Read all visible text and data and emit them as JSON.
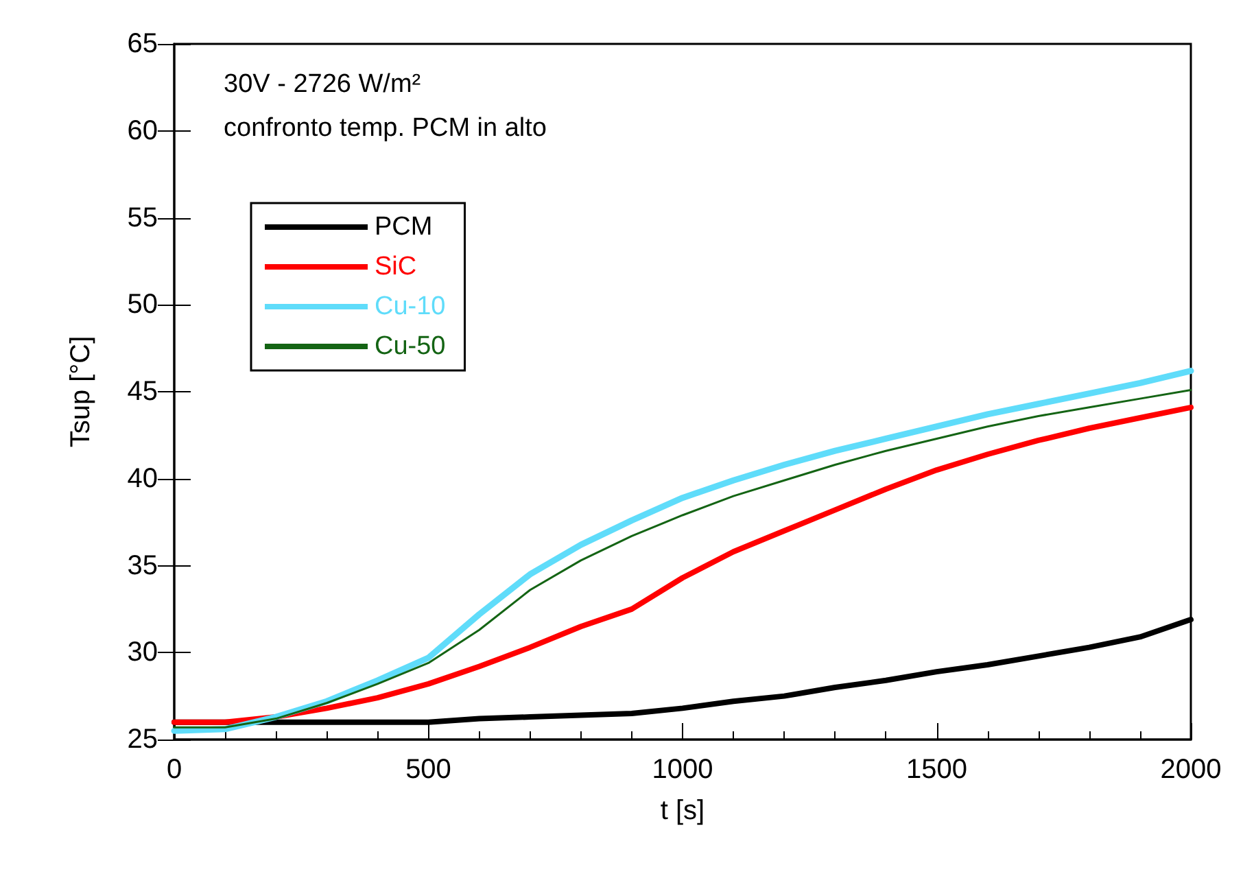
{
  "chart_data": {
    "type": "line",
    "xlabel": "t [s]",
    "ylabel": "Tsup [°C]",
    "annotations": [
      "30V - 2726 W/m²",
      "confronto temp. PCM in alto"
    ],
    "x": [
      0,
      100,
      200,
      300,
      400,
      500,
      600,
      700,
      800,
      900,
      1000,
      1100,
      1200,
      1300,
      1400,
      1500,
      1600,
      1700,
      1800,
      1900,
      2000
    ],
    "series": [
      {
        "name": "PCM",
        "color": "#000000",
        "values": [
          26,
          26,
          26,
          26,
          26,
          26,
          26.2,
          26.3,
          26.4,
          26.5,
          26.8,
          27.2,
          27.5,
          28,
          28.4,
          28.9,
          29.3,
          29.8,
          30.3,
          30.9,
          31.9
        ]
      },
      {
        "name": "SiC",
        "color": "#ff0000",
        "values": [
          26,
          26,
          26.3,
          26.8,
          27.4,
          28.2,
          29.2,
          30.3,
          31.5,
          32.5,
          34.3,
          35.8,
          37,
          38.2,
          39.4,
          40.5,
          41.4,
          42.2,
          42.9,
          43.5,
          44.1
        ]
      },
      {
        "name": "Cu-10",
        "color": "#5fdcfa",
        "values": [
          25.5,
          25.6,
          26.3,
          27.2,
          28.4,
          29.7,
          32.2,
          34.5,
          36.2,
          37.6,
          38.9,
          39.9,
          40.8,
          41.6,
          42.3,
          43,
          43.7,
          44.3,
          44.9,
          45.5,
          46.2
        ]
      },
      {
        "name": "Cu-50",
        "color": "#146414",
        "values": [
          25.7,
          25.7,
          26.2,
          27.1,
          28.2,
          29.4,
          31.3,
          33.6,
          35.3,
          36.7,
          37.9,
          39,
          39.9,
          40.8,
          41.6,
          42.3,
          43,
          43.6,
          44.1,
          44.6,
          45.1
        ]
      }
    ],
    "xlim": [
      0,
      2000
    ],
    "xticks": [
      0,
      500,
      1000,
      1500,
      2000
    ],
    "ylim": [
      25,
      65
    ],
    "yticks": [
      25,
      30,
      35,
      40,
      45,
      50,
      55,
      60,
      65
    ],
    "grid": false,
    "legend": "top left",
    "marker": "none",
    "line_style": "solid"
  }
}
